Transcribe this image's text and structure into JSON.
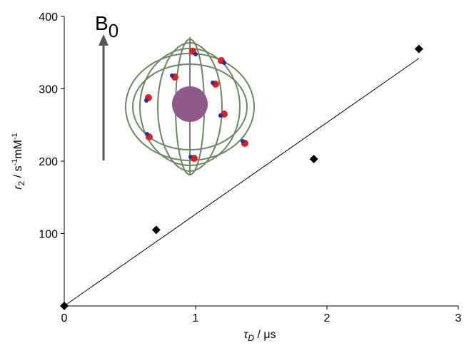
{
  "chart_data": {
    "type": "scatter",
    "x": [
      0,
      0.7,
      1.9,
      2.7
    ],
    "values": [
      0,
      105,
      203,
      355
    ],
    "color": "#000000",
    "fit_line": {
      "x": [
        0,
        2.7
      ],
      "values": [
        0,
        342
      ]
    },
    "xlim": [
      0,
      3
    ],
    "xticks": [
      0,
      1,
      2,
      3
    ],
    "ylim": [
      0,
      400
    ],
    "yticks": [
      100,
      200,
      300,
      400
    ],
    "xlabel": [
      "τ",
      "D",
      " / μs"
    ],
    "ylabel": [
      "r",
      "2",
      " / s",
      "-1",
      "mM",
      "-1"
    ],
    "annotation": [
      "B",
      "0"
    ]
  }
}
